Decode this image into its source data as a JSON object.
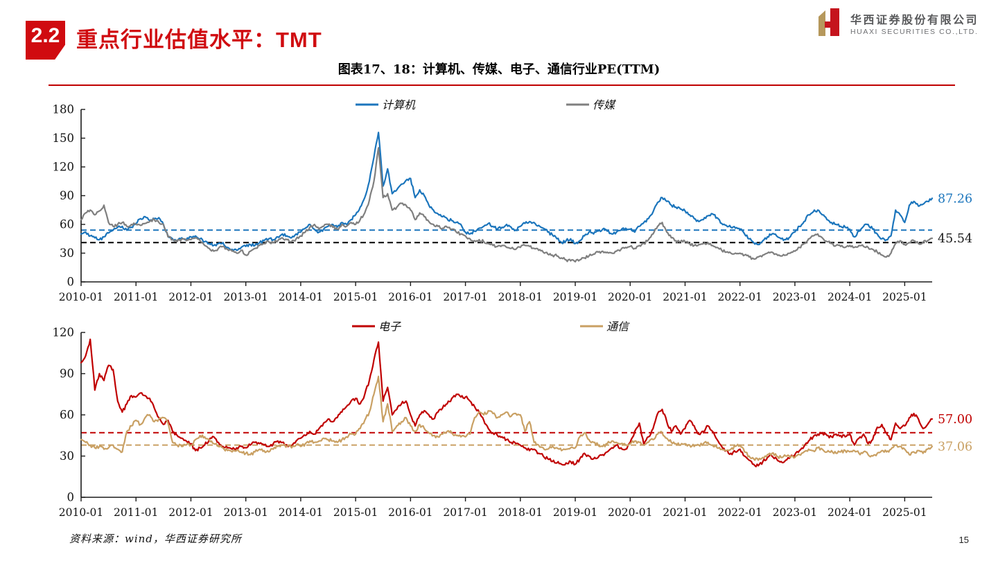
{
  "page": {
    "number": "15"
  },
  "header": {
    "section_number": "2.2",
    "title": "重点行业估值水平：TMT"
  },
  "logo": {
    "company_cn": "华西证券股份有限公司",
    "company_en": "HUAXI SECURITIES CO.,LTD."
  },
  "figure": {
    "title": "图表17、18：计算机、传媒、电子、通信行业PE(TTM)"
  },
  "source": {
    "text": "资料来源：wind，华西证券研究所"
  },
  "chart_data": [
    {
      "type": "line",
      "position": "top",
      "x_start": "2010-01",
      "x_end": "2025-07",
      "x_tick_labels": [
        "2010-01",
        "2011-01",
        "2012-01",
        "2013-01",
        "2014-01",
        "2015-01",
        "2016-01",
        "2017-01",
        "2018-01",
        "2019-01",
        "2020-01",
        "2021-01",
        "2022-01",
        "2023-01",
        "2024-01",
        "2025-01"
      ],
      "ylim": [
        0,
        180
      ],
      "yticks": [
        0,
        30,
        60,
        90,
        120,
        150,
        180
      ],
      "grid": false,
      "legend_position": "top",
      "series": [
        {
          "name": "计算机",
          "color": "#1b75bc",
          "end_label": "87.26",
          "end_label_color": "#1b75bc",
          "values": [
            50,
            52,
            48,
            46,
            44,
            47,
            51,
            54,
            57,
            58,
            54,
            57,
            61,
            66,
            68,
            64,
            66,
            67,
            60,
            48,
            45,
            43,
            46,
            44,
            47,
            48,
            45,
            42,
            40,
            38,
            40,
            41,
            36,
            34,
            33,
            36,
            37,
            39,
            38,
            41,
            43,
            45,
            44,
            47,
            50,
            48,
            46,
            50,
            52,
            56,
            60,
            55,
            52,
            55,
            58,
            60,
            57,
            62,
            60,
            65,
            70,
            78,
            88,
            105,
            130,
            156,
            100,
            118,
            92,
            96,
            102,
            106,
            108,
            88,
            96,
            90,
            80,
            75,
            71,
            68,
            66,
            64,
            62,
            60,
            52,
            50,
            53,
            56,
            58,
            61,
            58,
            55,
            57,
            60,
            57,
            54,
            58,
            61,
            63,
            62,
            59,
            56,
            52,
            49,
            45,
            41,
            43,
            45,
            40,
            43,
            48,
            52,
            50,
            53,
            55,
            53,
            50,
            52,
            54,
            56,
            55,
            52,
            58,
            62,
            66,
            73,
            83,
            88,
            84,
            80,
            78,
            76,
            74,
            70,
            66,
            63,
            65,
            69,
            71,
            67,
            61,
            59,
            57,
            56,
            55,
            50,
            45,
            41,
            39,
            43,
            47,
            50,
            48,
            45,
            44,
            47,
            52,
            58,
            63,
            70,
            73,
            75,
            70,
            65,
            62,
            60,
            58,
            57,
            55,
            47,
            53,
            58,
            60,
            55,
            50,
            45,
            44,
            48,
            75,
            70,
            62,
            80,
            84,
            79,
            81,
            84,
            87.26
          ]
        },
        {
          "name": "传媒",
          "color": "#7f7f7f",
          "end_label": "45.54",
          "end_label_color": "#1a1a1a",
          "values": [
            65,
            72,
            75,
            70,
            74,
            80,
            62,
            58,
            60,
            62,
            58,
            60,
            60,
            59,
            61,
            63,
            65,
            62,
            60,
            47,
            44,
            42,
            45,
            43,
            44,
            46,
            43,
            38,
            35,
            32,
            35,
            37,
            34,
            32,
            30,
            33,
            28,
            32,
            35,
            38,
            40,
            42,
            41,
            43,
            46,
            44,
            42,
            45,
            48,
            52,
            57,
            60,
            55,
            58,
            60,
            57,
            55,
            60,
            58,
            62,
            60,
            65,
            72,
            85,
            105,
            140,
            88,
            92,
            75,
            78,
            82,
            80,
            75,
            65,
            72,
            68,
            63,
            60,
            58,
            56,
            57,
            55,
            52,
            50,
            48,
            45,
            43,
            44,
            42,
            40,
            38,
            37,
            38,
            36,
            35,
            34,
            36,
            38,
            37,
            35,
            33,
            31,
            29,
            28,
            27,
            25,
            23,
            22,
            21,
            23,
            25,
            27,
            29,
            31,
            32,
            31,
            30,
            32,
            34,
            36,
            37,
            35,
            38,
            40,
            44,
            50,
            58,
            62,
            52,
            46,
            43,
            42,
            42,
            40,
            38,
            39,
            40,
            41,
            38,
            36,
            33,
            31,
            30,
            30,
            30,
            28,
            26,
            24,
            26,
            28,
            30,
            31,
            29,
            27,
            28,
            30,
            32,
            36,
            40,
            45,
            48,
            50,
            46,
            42,
            40,
            38,
            37,
            36,
            38,
            36,
            38,
            37,
            36,
            34,
            31,
            28,
            26,
            30,
            40,
            43,
            39,
            41,
            43,
            40,
            41,
            43,
            45.54
          ]
        }
      ],
      "ref_lines": [
        {
          "value": 54,
          "color": "#1b75bc"
        },
        {
          "value": 41,
          "color": "#000000"
        }
      ]
    },
    {
      "type": "line",
      "position": "bottom",
      "x_start": "2010-01",
      "x_end": "2025-07",
      "x_tick_labels": [
        "2010-01",
        "2011-01",
        "2012-01",
        "2013-01",
        "2014-01",
        "2015-01",
        "2016-01",
        "2017-01",
        "2018-01",
        "2019-01",
        "2020-01",
        "2021-01",
        "2022-01",
        "2023-01",
        "2024-01",
        "2025-01"
      ],
      "ylim": [
        0,
        120
      ],
      "yticks": [
        0,
        30,
        60,
        90,
        120
      ],
      "grid": false,
      "legend_position": "top",
      "series": [
        {
          "name": "电子",
          "color": "#c00000",
          "end_label": "57.00",
          "end_label_color": "#c00000",
          "values": [
            98,
            103,
            115,
            78,
            90,
            85,
            96,
            93,
            70,
            62,
            68,
            74,
            73,
            76,
            74,
            72,
            65,
            58,
            53,
            56,
            48,
            45,
            43,
            41,
            39,
            34,
            36,
            38,
            42,
            44,
            40,
            37,
            36,
            35,
            36,
            37,
            36,
            38,
            40,
            39,
            38,
            37,
            39,
            41,
            40,
            38,
            37,
            41,
            43,
            45,
            48,
            46,
            50,
            54,
            57,
            55,
            58,
            62,
            66,
            70,
            72,
            68,
            75,
            85,
            100,
            113,
            70,
            80,
            60,
            64,
            68,
            70,
            60,
            52,
            60,
            63,
            60,
            57,
            62,
            65,
            68,
            72,
            75,
            73,
            73,
            70,
            66,
            62,
            56,
            50,
            47,
            45,
            44,
            42,
            40,
            39,
            38,
            36,
            34,
            35,
            32,
            30,
            28,
            26,
            25,
            24,
            25,
            26,
            24,
            28,
            32,
            30,
            28,
            29,
            31,
            33,
            36,
            38,
            36,
            35,
            40,
            48,
            54,
            38,
            44,
            50,
            61,
            64,
            55,
            48,
            52,
            46,
            50,
            56,
            52,
            46,
            48,
            52,
            48,
            42,
            37,
            34,
            32,
            33,
            35,
            30,
            27,
            24,
            23,
            26,
            29,
            30,
            28,
            26,
            27,
            29,
            31,
            34,
            37,
            41,
            44,
            46,
            47,
            45,
            44,
            46,
            45,
            44,
            46,
            38,
            43,
            46,
            39,
            42,
            51,
            53,
            47,
            42,
            54,
            50,
            52,
            58,
            61,
            57,
            50,
            53,
            57.0
          ]
        },
        {
          "name": "通信",
          "color": "#c9a063",
          "end_label": "37.06",
          "end_label_color": "#c9a063",
          "values": [
            42,
            40,
            38,
            36,
            37,
            35,
            36,
            38,
            35,
            33,
            48,
            52,
            56,
            53,
            58,
            60,
            55,
            57,
            58,
            54,
            40,
            38,
            37,
            38,
            38,
            42,
            45,
            44,
            42,
            39,
            37,
            36,
            34,
            33,
            34,
            33,
            32,
            31,
            33,
            35,
            34,
            33,
            35,
            37,
            38,
            37,
            36,
            38,
            37,
            39,
            41,
            40,
            41,
            43,
            42,
            41,
            40,
            42,
            44,
            46,
            46,
            50,
            56,
            62,
            75,
            88,
            55,
            68,
            48,
            52,
            55,
            58,
            52,
            48,
            53,
            50,
            47,
            45,
            44,
            46,
            48,
            47,
            45,
            44,
            44,
            46,
            58,
            62,
            60,
            63,
            61,
            58,
            60,
            62,
            59,
            61,
            60,
            48,
            55,
            40,
            38,
            36,
            35,
            37,
            36,
            34,
            35,
            36,
            36,
            44,
            47,
            42,
            40,
            38,
            37,
            39,
            41,
            40,
            39,
            38,
            39,
            41,
            40,
            38,
            40,
            42,
            46,
            47,
            43,
            40,
            39,
            38,
            39,
            38,
            37,
            38,
            39,
            40,
            38,
            36,
            35,
            34,
            35,
            37,
            38,
            33,
            30,
            28,
            27,
            29,
            31,
            32,
            30,
            29,
            30,
            29,
            29,
            31,
            33,
            35,
            34,
            36,
            35,
            33,
            34,
            32,
            33,
            34,
            33,
            34,
            32,
            33,
            31,
            30,
            32,
            34,
            33,
            35,
            38,
            37,
            35,
            31,
            33,
            34,
            32,
            35,
            37.06
          ]
        }
      ],
      "ref_lines": [
        {
          "value": 47,
          "color": "#c00000"
        },
        {
          "value": 38,
          "color": "#c9a063"
        }
      ]
    }
  ]
}
